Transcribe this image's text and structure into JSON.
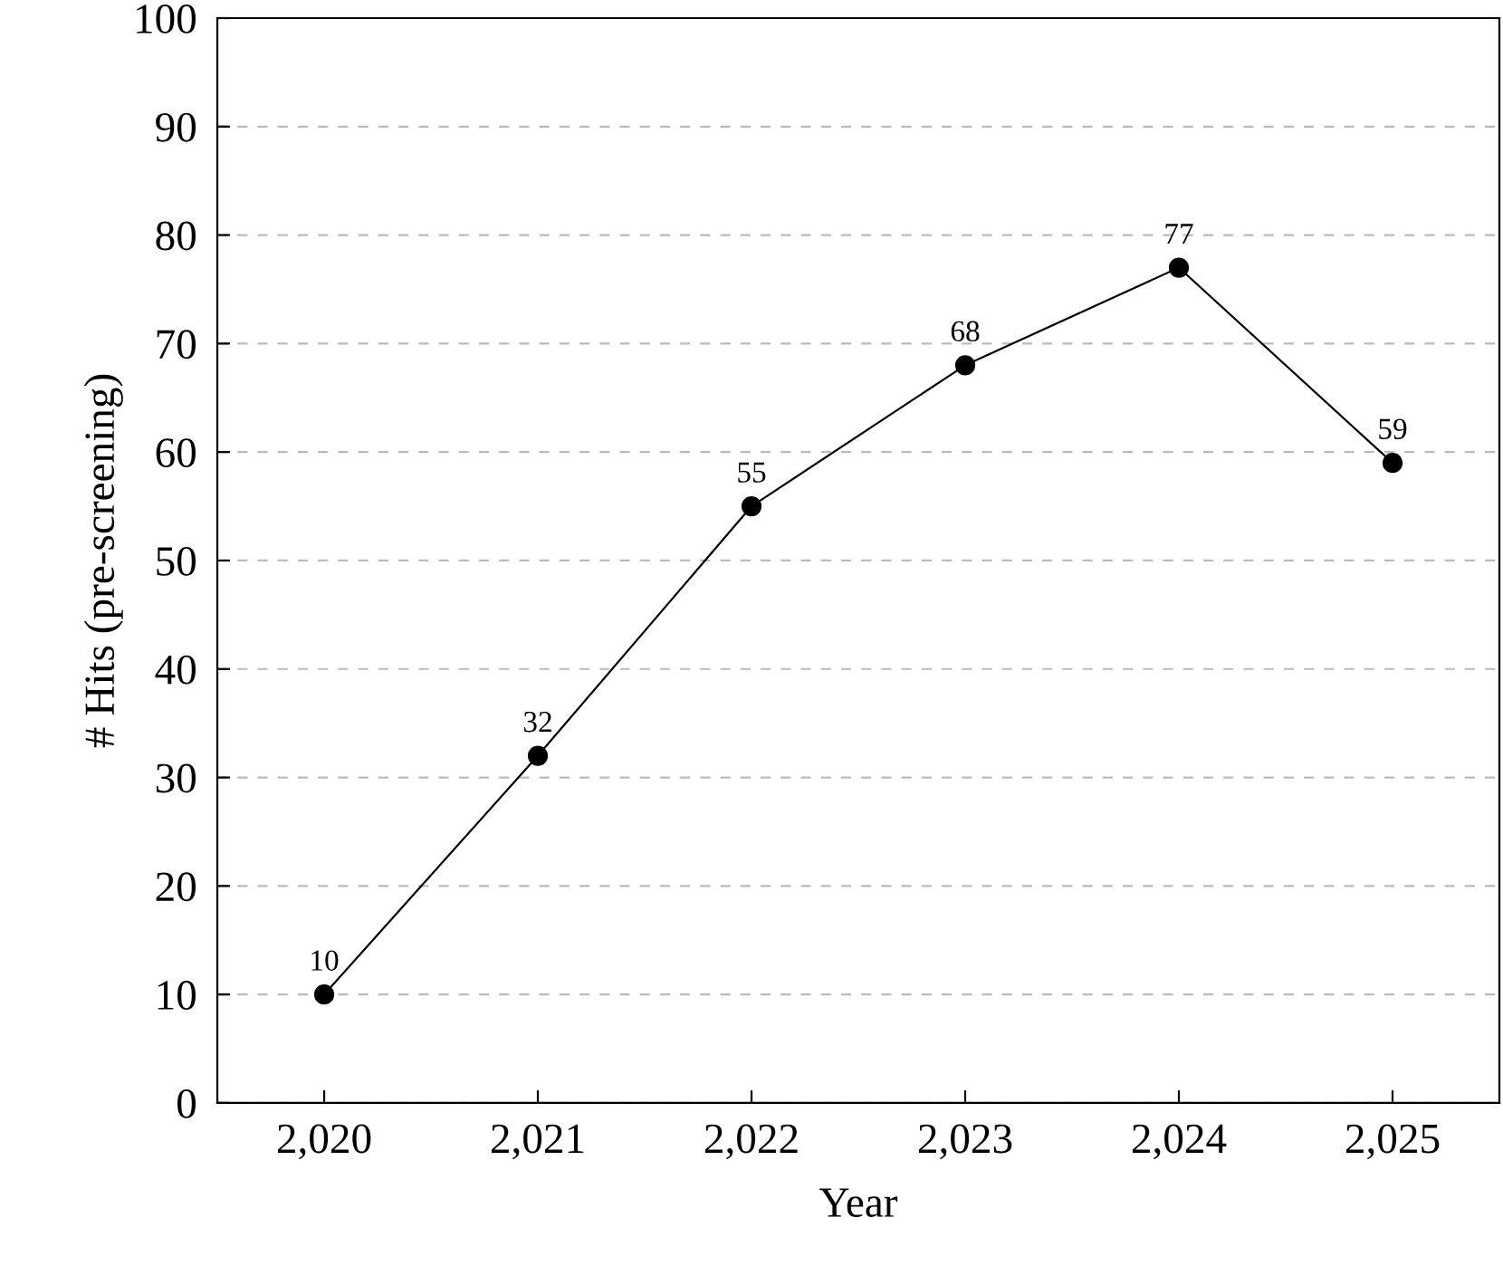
{
  "chart_data": {
    "type": "line",
    "xlabel": "Year",
    "ylabel": "# Hits (pre-screening)",
    "x": [
      2020,
      2021,
      2022,
      2023,
      2024,
      2025
    ],
    "series": [
      {
        "color": "#000000",
        "values": [
          10,
          32,
          55,
          68,
          77,
          59
        ]
      }
    ],
    "xlim": [
      2019.5,
      2025.5
    ],
    "xticks": [
      {
        "value": 2020,
        "label": "2,020"
      },
      {
        "value": 2021,
        "label": "2,021"
      },
      {
        "value": 2022,
        "label": "2,022"
      },
      {
        "value": 2023,
        "label": "2,023"
      },
      {
        "value": 2024,
        "label": "2,024"
      },
      {
        "value": 2025,
        "label": "2,025"
      }
    ],
    "ylim": [
      0,
      100
    ],
    "yticks": [
      0,
      10,
      20,
      30,
      40,
      50,
      60,
      70,
      80,
      90,
      100
    ],
    "grid": "y",
    "marker": "circle",
    "line_style": "solid",
    "data_labels": true
  }
}
